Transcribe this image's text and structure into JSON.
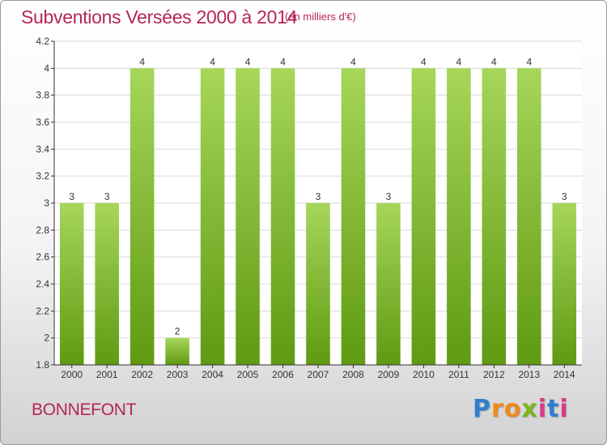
{
  "header": {
    "title": "Subventions Versées 2000 à 2014",
    "subtitle": "(en milliers d'€)"
  },
  "footer": {
    "commune": "BONNEFONT",
    "logo": {
      "letters": [
        "P",
        "r",
        "o",
        "x",
        "i",
        "t",
        "i"
      ],
      "colors": [
        "#2e7fd0",
        "#f08a1c",
        "#f08a1c",
        "#7ab51d",
        "#d93a8a",
        "#2e7fd0",
        "#d93a8a"
      ]
    }
  },
  "colors": {
    "bar_light": "#a6d65a",
    "bar_dark": "#5f9a12",
    "grid": "#d8d8d8",
    "axis": "#333333"
  },
  "chart_data": {
    "type": "bar",
    "categories": [
      "2000",
      "2001",
      "2002",
      "2003",
      "2004",
      "2005",
      "2006",
      "2007",
      "2008",
      "2009",
      "2010",
      "2011",
      "2012",
      "2013",
      "2014"
    ],
    "values": [
      3,
      3,
      4,
      2,
      4,
      4,
      4,
      3,
      4,
      3,
      4,
      4,
      4,
      4,
      3
    ],
    "data_labels": [
      "3",
      "3",
      "4",
      "2",
      "4",
      "4",
      "4",
      "3",
      "4",
      "3",
      "4",
      "4",
      "4",
      "4",
      "3"
    ],
    "y_ticks": [
      "1.8",
      "2",
      "2.2",
      "2.4",
      "2.6",
      "2.8",
      "3",
      "3.2",
      "3.4",
      "3.6",
      "3.8",
      "4",
      "4.2"
    ],
    "ylim": [
      1.8,
      4.2
    ],
    "grid": true
  }
}
